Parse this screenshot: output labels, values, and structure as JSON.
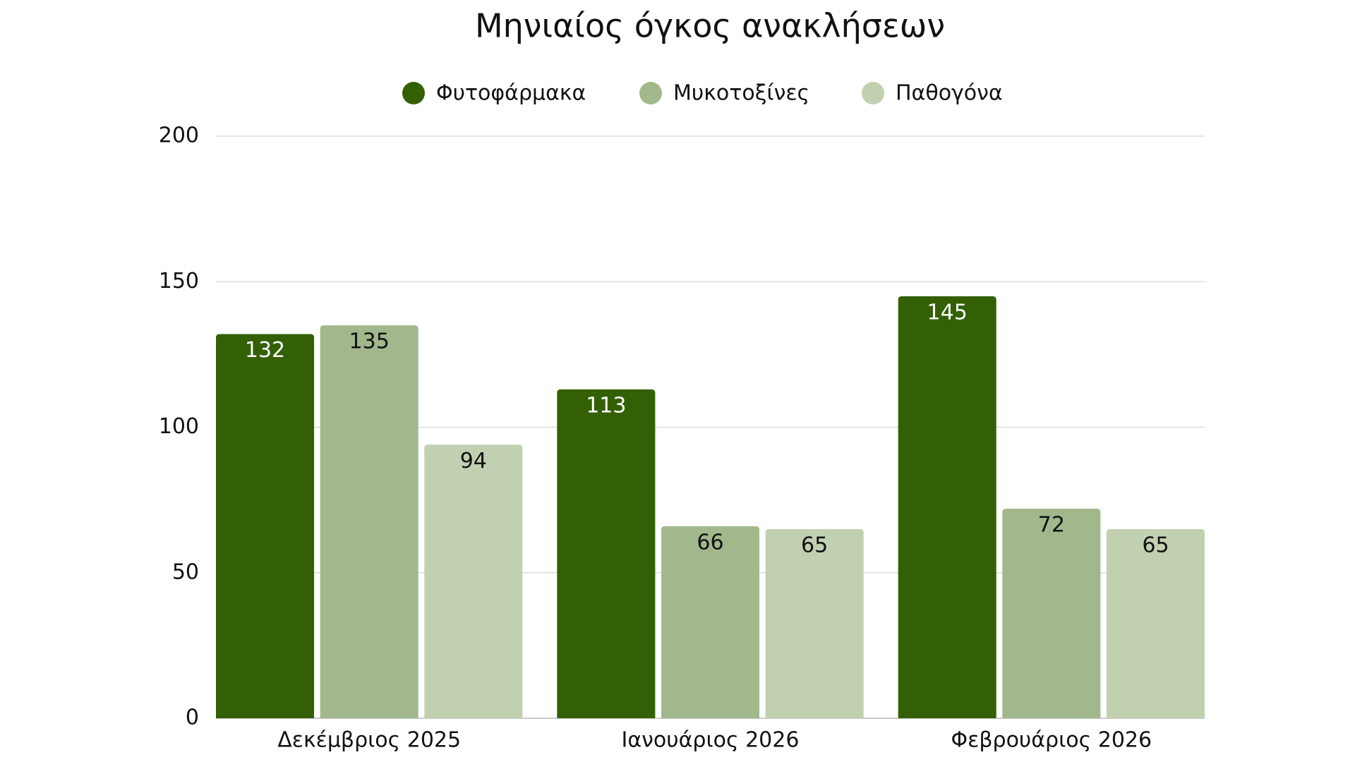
{
  "chart_data": {
    "type": "bar",
    "title": "Μηνιαίος όγκος ανακλήσεων",
    "categories": [
      "Δεκέμβριος 2025",
      "Ιανουάριος 2026",
      "Φεβρουάριος 2026"
    ],
    "series": [
      {
        "name": "Φυτοφάρμακα",
        "color": "#346005",
        "values": [
          132,
          113,
          145
        ]
      },
      {
        "name": "Μυκοτοξίνες",
        "color": "#a2b88c",
        "values": [
          135,
          66,
          72
        ]
      },
      {
        "name": "Παθογόνα",
        "color": "#c2d0b2",
        "values": [
          94,
          65,
          65
        ]
      }
    ],
    "ylim": [
      0,
      200
    ],
    "yticks": [
      0,
      50,
      100,
      150,
      200
    ],
    "grid": true
  }
}
